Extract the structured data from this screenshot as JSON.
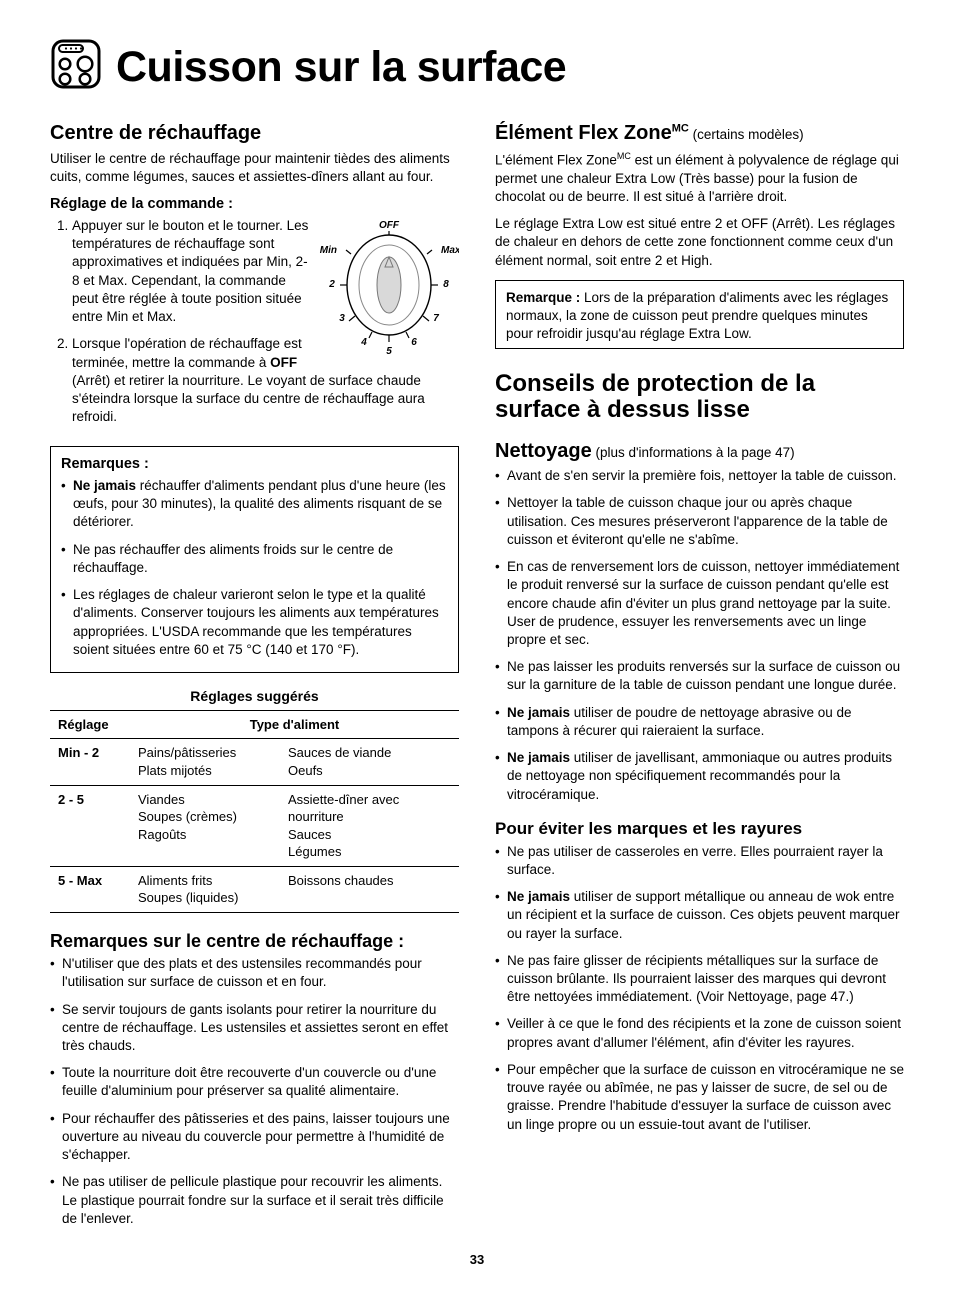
{
  "page": {
    "title": "Cuisson sur la surface",
    "number": "33"
  },
  "left": {
    "h_centre": "Centre de réchauffage",
    "centre_intro": "Utiliser le centre de réchauffage pour maintenir tièdes des aliments cuits, comme légumes, sauces et assiettes-dîners allant au four.",
    "h_reglage": "Réglage de la commande :",
    "step1": "Appuyer sur le bouton et le tourner. Les températures de réchauffage sont approximatives et indiquées par Min, 2-8 et Max. Cependant, la commande peut être réglée à toute position située entre Min et Max.",
    "step2_a": "Lorsque l'opération de réchauffage est terminée, mettre la commande à ",
    "step2_off": "OFF",
    "step2_b": " (Arrêt) et retirer la nourriture. Le voyant de surface chaude s'éteindra lorsque la surface du centre de réchauffage aura refroidi.",
    "notes_header": "Remarques :",
    "note1_a": "Ne jamais",
    "note1_b": " réchauffer d'aliments pendant plus d'une heure (les œufs, pour 30 minutes), la qualité des aliments risquant de se détériorer.",
    "note2": "Ne pas réchauffer des aliments froids sur le centre de réchauffage.",
    "note3": "Les réglages de chaleur varieront selon le type et la qualité d'aliments. Conserver toujours les aliments aux températures appropriées. L'USDA recommande que les températures soient situées entre 60 et 75 °C (140 et 170 °F).",
    "table_caption": "Réglages suggérés",
    "th_setting": "Réglage",
    "th_food": "Type d'aliment",
    "rows": [
      {
        "setting": "Min - 2",
        "a": "Pains/pâtisseries\nPlats mijotés",
        "b": "Sauces de viande\nOeufs"
      },
      {
        "setting": "2 - 5",
        "a": "Viandes\nSoupes (crèmes)\nRagoûts",
        "b": "Assiette-dîner avec nourriture\nSauces\nLégumes"
      },
      {
        "setting": "5 - Max",
        "a": "Aliments frits\nSoupes (liquides)",
        "b": "Boissons chaudes"
      }
    ],
    "h_remarques_centre": "Remarques sur le centre de réchauffage :",
    "rc": [
      "N'utiliser que des plats et des ustensiles recommandés pour l'utilisation sur surface de cuisson et en four.",
      "Se servir toujours de gants isolants pour retirer la nourriture du centre de réchauffage. Les ustensiles et assiettes seront en effet très chauds.",
      "Toute la nourriture doit être recouverte d'un couvercle ou d'une feuille d'aluminium pour préserver sa qualité alimentaire.",
      "Pour réchauffer des pâtisseries et des pains, laisser toujours une ouverture au niveau du couvercle pour permettre à l'humidité de s'échapper.",
      "Ne pas utiliser de pellicule plastique pour recouvrir les aliments. Le plastique pourrait fondre sur la surface et il serait très difficile de l'enlever."
    ],
    "dial": {
      "off": "OFF",
      "min": "Min",
      "max": "Max",
      "n2": "2",
      "n3": "3",
      "n4": "4",
      "n5": "5",
      "n6": "6",
      "n7": "7",
      "n8": "8"
    }
  },
  "right": {
    "h_flex_a": "Élément Flex Zone",
    "h_flex_sup": "MC",
    "h_flex_aside": " (certains modèles)",
    "flex_p1_a": "L'élément Flex Zone",
    "flex_p1_sup": "MC",
    "flex_p1_b": " est un élément à polyvalence de réglage qui permet une chaleur Extra Low (Très basse) pour la fusion de chocolat ou de beurre. Il est situé à l'arrière droit.",
    "flex_p2": "Le réglage Extra Low est situé entre 2 et OFF (Arrêt). Les réglages de chaleur en dehors de cette zone fonctionnent comme ceux d'un élément normal, soit entre 2 et High.",
    "remark_label": "Remarque :",
    "remark_text": " Lors de la préparation d'aliments avec les réglages normaux, la zone de cuisson peut prendre quelques minutes pour refroidir jusqu'au réglage Extra Low.",
    "h_conseils": "Conseils de protection de la surface à dessus lisse",
    "h_nettoyage": "Nettoyage",
    "nettoyage_aside": " (plus d'informations à la page 47)",
    "clean": [
      "Avant de s'en servir la première fois, nettoyer la table de cuisson.",
      "Nettoyer la table de cuisson chaque jour ou après chaque utilisation. Ces mesures préserveront l'apparence de la table de cuisson et éviteront qu'elle ne s'abîme.",
      "En cas de renversement lors de cuisson, nettoyer immédiatement le produit renversé sur la surface de cuisson pendant qu'elle est encore chaude afin d'éviter un plus grand nettoyage par la suite. User de prudence, essuyer les renversements avec un linge propre et sec.",
      "Ne pas laisser les produits renversés sur la surface de cuisson ou sur la garniture de la table de cuisson pendant une longue durée."
    ],
    "clean_bold": "Ne jamais",
    "clean5": " utiliser de poudre de nettoyage abrasive ou de tampons à récurer qui raieraient la surface.",
    "clean6": " utiliser de javellisant, ammoniaque ou autres produits de nettoyage non spécifiquement recommandés pour la vitrocéramique.",
    "h_marques": "Pour éviter les marques et les rayures",
    "marks1": "Ne pas utiliser de casseroles en verre. Elles pourraient rayer la surface.",
    "marks2": " utiliser de support métallique ou anneau de wok entre un récipient et la surface de cuisson. Ces objets peuvent marquer ou rayer la surface.",
    "marks3": "Ne pas faire glisser de récipients métalliques sur la surface de cuisson brûlante. Ils pourraient laisser des marques qui devront être nettoyées immédiatement. (Voir Nettoyage, page 47.)",
    "marks4": "Veiller à ce que le fond des récipients et la zone de cuisson soient propres avant d'allumer l'élément, afin d'éviter les rayures.",
    "marks5": "Pour empêcher que la surface de cuisson en vitrocéramique ne se trouve rayée ou abîmée, ne pas y laisser de sucre, de sel ou de graisse. Prendre l'habitude d'essuyer la surface de cuisson avec un linge propre ou un essuie-tout avant de l'utiliser."
  }
}
